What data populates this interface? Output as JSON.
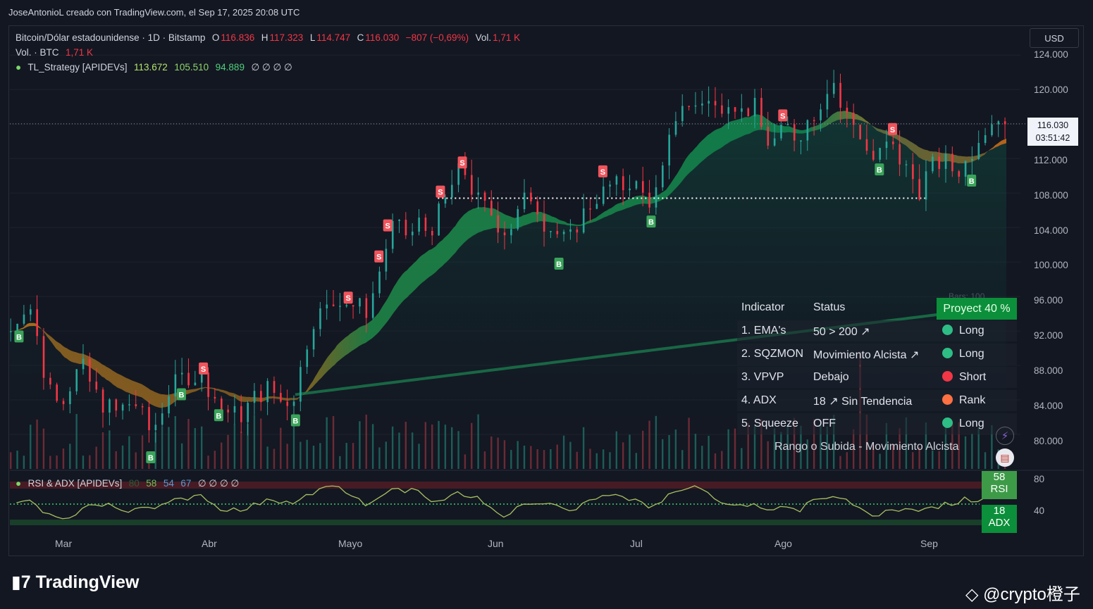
{
  "header": {
    "caption": "JoseAntonioL creado con TradingView.com, el Sep 17, 2025 20:08 UTC"
  },
  "legend": {
    "symbol": "Bitcoin/Dólar estadounidense · 1D · Bitstamp",
    "o_label": "O",
    "o_value": "116.836",
    "h_label": "H",
    "h_value": "117.323",
    "l_label": "L",
    "l_value": "114.747",
    "c_label": "C",
    "c_value": "116.030",
    "change": "−807 (−0,69%)",
    "vol_label": "Vol.",
    "vol_value": "1,71 K",
    "vol_line_label": "Vol. · BTC",
    "vol_line_value": "1,71 K",
    "strategy_name": "TL_Strategy [APIDEVs]",
    "strategy_v1": "113.672",
    "strategy_v2": "105.510",
    "strategy_v3": "94.889",
    "strategy_empty": "∅ ∅ ∅ ∅",
    "rsi_name": "RSI & ADX [APIDEVs]",
    "rsi_v0": "80",
    "rsi_v1": "58",
    "rsi_v2": "54",
    "rsi_v3": "67",
    "rsi_empty": "∅ ∅ ∅ ∅"
  },
  "currency": "USD",
  "price_tag": {
    "price": "116.030",
    "countdown": "03:51:42"
  },
  "bars_label": "Bars: 100",
  "table": {
    "head": [
      "Indicator",
      "Status"
    ],
    "projection": "Proyect 40 %",
    "rows": [
      {
        "name": "1. EMA's",
        "status": "50 > 200 ↗",
        "signal": "Long",
        "color": "#2ebd85"
      },
      {
        "name": "2. SQZMON",
        "status": "Movimiento Alcista ↗",
        "signal": "Long",
        "color": "#2ebd85"
      },
      {
        "name": "3. VPVP",
        "status": "Debajo",
        "signal": "Short",
        "color": "#f23645"
      },
      {
        "name": "4. ADX",
        "status": "18 ↗ Sin Tendencia",
        "signal": "Rank",
        "color": "#ff7043"
      },
      {
        "name": "5. Squeeze",
        "status": "OFF",
        "signal": "Long",
        "color": "#2ebd85"
      }
    ],
    "footer": "Rango o Subida - Movimiento Alcista"
  },
  "rsi_badge": {
    "value": "58",
    "label": "RSI"
  },
  "adx_badge": {
    "value": "18",
    "label": "ADX"
  },
  "colors": {
    "up": "#26a69a",
    "down": "#f23645",
    "band_green": "#0d8a4f",
    "band_orange": "#c8761a"
  },
  "chart_data": {
    "type": "candlestick",
    "x_ticks": [
      "Mar",
      "Abr",
      "Mayo",
      "Jun",
      "Jul",
      "Ago",
      "Sep"
    ],
    "y_ticks": [
      "124.000",
      "120.000",
      "116.000",
      "112.000",
      "108.000",
      "104.000",
      "100.000",
      "96.000",
      "92.000",
      "88.000",
      "84.000",
      "80.000"
    ],
    "ylim": [
      76000,
      125000
    ],
    "rsi_ticks": [
      "80",
      "40"
    ],
    "points": [
      [
        0,
        92000
      ],
      [
        8,
        96000
      ],
      [
        16,
        86000
      ],
      [
        24,
        84500
      ],
      [
        32,
        88000
      ],
      [
        40,
        84000
      ],
      [
        48,
        82500
      ],
      [
        56,
        84000
      ],
      [
        64,
        80000
      ],
      [
        72,
        85000
      ],
      [
        80,
        87000
      ],
      [
        88,
        86500
      ],
      [
        96,
        83000
      ],
      [
        104,
        82000
      ],
      [
        112,
        84500
      ],
      [
        118,
        85500
      ],
      [
        124,
        83500
      ],
      [
        130,
        85000
      ],
      [
        134,
        90000
      ],
      [
        138,
        93500
      ],
      [
        144,
        94500
      ],
      [
        150,
        96000
      ],
      [
        156,
        95000
      ],
      [
        162,
        94500
      ],
      [
        166,
        97000
      ],
      [
        170,
        101000
      ],
      [
        174,
        104000
      ],
      [
        178,
        103500
      ],
      [
        182,
        103000
      ],
      [
        186,
        104500
      ],
      [
        190,
        103500
      ],
      [
        194,
        105000
      ],
      [
        198,
        107000
      ],
      [
        202,
        109500
      ],
      [
        206,
        111000
      ],
      [
        210,
        108500
      ],
      [
        214,
        106500
      ],
      [
        218,
        106000
      ],
      [
        222,
        104500
      ],
      [
        226,
        103500
      ],
      [
        230,
        105000
      ],
      [
        234,
        107000
      ],
      [
        238,
        108000
      ],
      [
        242,
        105000
      ],
      [
        246,
        104000
      ],
      [
        250,
        103000
      ],
      [
        254,
        102000
      ],
      [
        258,
        104500
      ],
      [
        262,
        106000
      ],
      [
        266,
        107500
      ],
      [
        270,
        108000
      ],
      [
        274,
        109000
      ],
      [
        278,
        108500
      ],
      [
        282,
        109500
      ],
      [
        286,
        108500
      ],
      [
        290,
        107000
      ],
      [
        294,
        108000
      ],
      [
        298,
        111000
      ],
      [
        302,
        116500
      ],
      [
        306,
        118500
      ],
      [
        310,
        117500
      ],
      [
        314,
        119000
      ],
      [
        318,
        118500
      ],
      [
        322,
        117500
      ],
      [
        326,
        119500
      ],
      [
        330,
        118500
      ],
      [
        334,
        117000
      ],
      [
        338,
        118500
      ],
      [
        342,
        115500
      ],
      [
        346,
        113500
      ],
      [
        350,
        114500
      ],
      [
        354,
        115500
      ],
      [
        358,
        114500
      ],
      [
        362,
        116000
      ],
      [
        366,
        117500
      ],
      [
        370,
        119000
      ],
      [
        374,
        122000
      ],
      [
        378,
        118000
      ],
      [
        382,
        116500
      ],
      [
        386,
        115500
      ],
      [
        390,
        113000
      ],
      [
        394,
        111500
      ],
      [
        398,
        113500
      ],
      [
        402,
        113000
      ],
      [
        406,
        111500
      ],
      [
        410,
        110000
      ],
      [
        414,
        108500
      ],
      [
        418,
        110500
      ],
      [
        422,
        111500
      ],
      [
        426,
        111500
      ],
      [
        430,
        110500
      ],
      [
        434,
        111000
      ],
      [
        438,
        113000
      ],
      [
        442,
        115500
      ],
      [
        446,
        116500
      ],
      [
        450,
        117000
      ],
      [
        454,
        116000
      ]
    ],
    "signals": [
      {
        "t": "B",
        "i": 4
      },
      {
        "t": "B",
        "i": 64
      },
      {
        "t": "B",
        "i": 78
      },
      {
        "t": "B",
        "i": 95
      },
      {
        "t": "B",
        "i": 130
      },
      {
        "t": "B",
        "i": 250
      },
      {
        "t": "B",
        "i": 292
      },
      {
        "t": "B",
        "i": 396
      },
      {
        "t": "B",
        "i": 438
      },
      {
        "t": "S",
        "i": 88
      },
      {
        "t": "S",
        "i": 154
      },
      {
        "t": "S",
        "i": 168
      },
      {
        "t": "S",
        "i": 172
      },
      {
        "t": "S",
        "i": 196
      },
      {
        "t": "S",
        "i": 206
      },
      {
        "t": "S",
        "i": 270
      },
      {
        "t": "S",
        "i": 352
      },
      {
        "t": "S",
        "i": 402
      }
    ],
    "ema_fast_start": 88000,
    "ema_mid_end": 113672,
    "ema_slow_end": 105510,
    "ema_long_end": 94889,
    "resistance_level": 107400
  }
}
